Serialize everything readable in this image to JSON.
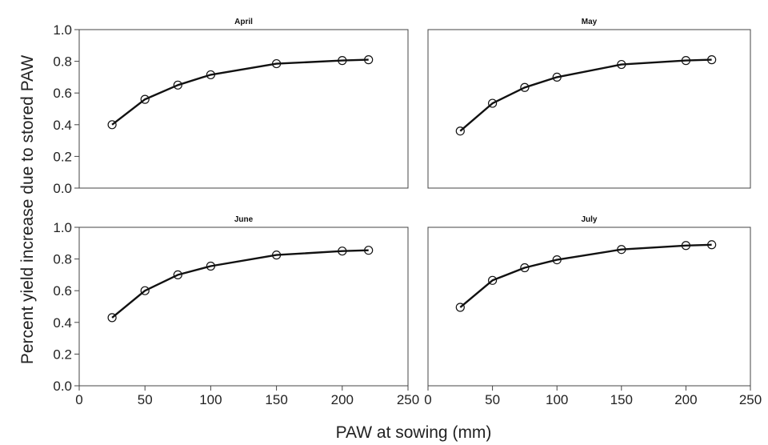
{
  "figure": {
    "ylabel": "Percent yield increase due to stored PAW",
    "xlabel": "PAW at sowing (mm)"
  },
  "chart_data": [
    {
      "type": "line",
      "title": "April",
      "x": [
        25,
        50,
        75,
        100,
        150,
        200,
        220
      ],
      "series": [
        {
          "values": [
            0.4,
            0.56,
            0.65,
            0.715,
            0.785,
            0.805,
            0.81
          ]
        }
      ],
      "xlim": [
        0,
        250
      ],
      "ylim": [
        0,
        1.0
      ],
      "xticks": [
        0,
        50,
        100,
        150,
        200,
        250
      ],
      "yticks": [
        0.0,
        0.2,
        0.4,
        0.6,
        0.8,
        1.0
      ],
      "show_xticks": false,
      "show_yticks": true
    },
    {
      "type": "line",
      "title": "May",
      "x": [
        25,
        50,
        75,
        100,
        150,
        200,
        220
      ],
      "series": [
        {
          "values": [
            0.36,
            0.535,
            0.635,
            0.7,
            0.78,
            0.805,
            0.81
          ]
        }
      ],
      "xlim": [
        0,
        250
      ],
      "ylim": [
        0,
        1.0
      ],
      "xticks": [
        0,
        50,
        100,
        150,
        200,
        250
      ],
      "yticks": [
        0.0,
        0.2,
        0.4,
        0.6,
        0.8,
        1.0
      ],
      "show_xticks": false,
      "show_yticks": false
    },
    {
      "type": "line",
      "title": "June",
      "x": [
        25,
        50,
        75,
        100,
        150,
        200,
        220
      ],
      "series": [
        {
          "values": [
            0.43,
            0.6,
            0.7,
            0.755,
            0.825,
            0.85,
            0.855
          ]
        }
      ],
      "xlim": [
        0,
        250
      ],
      "ylim": [
        0,
        1.0
      ],
      "xticks": [
        0,
        50,
        100,
        150,
        200,
        250
      ],
      "yticks": [
        0.0,
        0.2,
        0.4,
        0.6,
        0.8,
        1.0
      ],
      "show_xticks": true,
      "show_yticks": true
    },
    {
      "type": "line",
      "title": "July",
      "x": [
        25,
        50,
        75,
        100,
        150,
        200,
        220
      ],
      "series": [
        {
          "values": [
            0.495,
            0.665,
            0.745,
            0.795,
            0.86,
            0.885,
            0.89
          ]
        }
      ],
      "xlim": [
        0,
        250
      ],
      "ylim": [
        0,
        1.0
      ],
      "xticks": [
        0,
        50,
        100,
        150,
        200,
        250
      ],
      "yticks": [
        0.0,
        0.2,
        0.4,
        0.6,
        0.8,
        1.0
      ],
      "show_xticks": true,
      "show_yticks": false
    }
  ]
}
